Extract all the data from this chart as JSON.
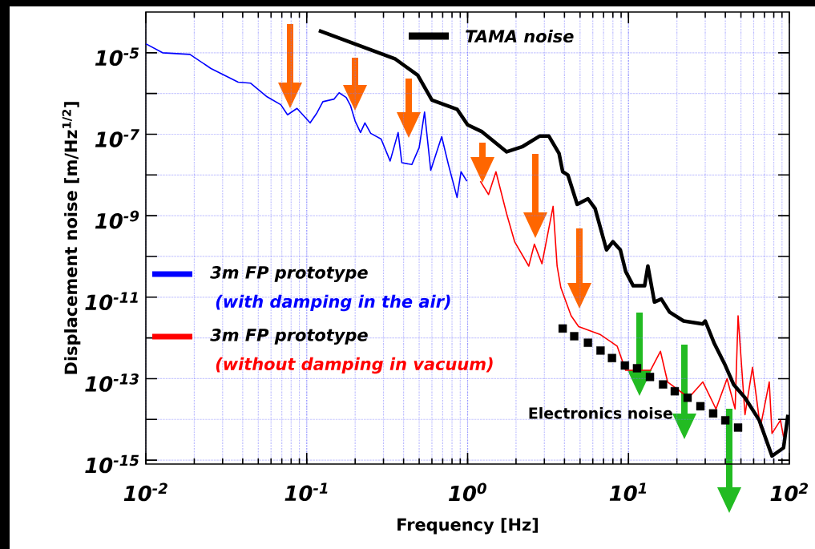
{
  "chart_data": {
    "type": "line",
    "xlabel": "Frequency [Hz]",
    "ylabel": "Displacement noise [m/Hz$^{1/2}$]",
    "log": "xy",
    "grid": true,
    "legend": "left",
    "xlim": [
      0.01,
      100
    ],
    "ylim": [
      8e-16,
      0.0001
    ],
    "xticks": [
      {
        "value": 0.01,
        "label": "10$^{-2}$"
      },
      {
        "value": 0.1,
        "label": "10$^{-1}$"
      },
      {
        "value": 1,
        "label": "10$^{0}$"
      },
      {
        "value": 10,
        "label": "10$^{1}$"
      },
      {
        "value": 100,
        "label": "10$^{2}$"
      }
    ],
    "yticks": [
      {
        "value": 1e-15,
        "label": "10$^{-15}$"
      },
      {
        "value": 1e-14,
        "label": null
      },
      {
        "value": 1e-13,
        "label": "10$^{-13}$"
      },
      {
        "value": 1e-12,
        "label": null
      },
      {
        "value": 1e-11,
        "label": "10$^{-11}$"
      },
      {
        "value": 1e-10,
        "label": null
      },
      {
        "value": 1e-09,
        "label": "10$^{-9}$"
      },
      {
        "value": 1e-08,
        "label": null
      },
      {
        "value": 1e-07,
        "label": "10$^{-7}$"
      },
      {
        "value": 1e-06,
        "label": null
      },
      {
        "value": 1e-05,
        "label": "10$^{-5}$"
      }
    ],
    "annotations": [
      "(with damping in the air)",
      "(without damping in vacuum)"
    ],
    "series": [
      {
        "name": "3m FP prototype",
        "color": "#0000ff",
        "x": [
          0.01,
          0.0127,
          0.0188,
          0.0254,
          0.0375,
          0.0447,
          0.0567,
          0.069,
          0.076,
          0.087,
          0.105,
          0.115,
          0.126,
          0.148,
          0.159,
          0.176,
          0.187,
          0.2,
          0.216,
          0.23,
          0.25,
          0.29,
          0.33,
          0.37,
          0.39,
          0.45,
          0.5,
          0.54,
          0.59,
          0.69,
          0.76,
          0.86,
          0.91,
          0.99
        ],
        "values": [
          1.66e-05,
          1e-05,
          9.1e-06,
          4.1e-06,
          1.9e-06,
          1.8e-06,
          8.3e-07,
          5.3e-07,
          3e-07,
          4.3e-07,
          1.9e-07,
          3.2e-07,
          6.3e-07,
          7.3e-07,
          1.04e-06,
          8e-07,
          5.1e-07,
          2.1e-07,
          1.1e-07,
          1.9e-07,
          1.05e-07,
          7.6e-08,
          2.2e-08,
          1.1e-07,
          2e-08,
          1.8e-08,
          4.7e-08,
          3.5e-07,
          1.3e-08,
          8.7e-08,
          1.8e-08,
          2.8e-09,
          1.2e-08,
          7e-09
        ]
      },
      {
        "name": "3m FP prototype",
        "color": "#ff0000",
        "x": [
          1.2,
          1.35,
          1.5,
          1.75,
          1.96,
          2.4,
          2.6,
          2.9,
          3.4,
          3.6,
          3.8,
          4.4,
          4.9,
          6.7,
          8.5,
          9.6,
          13.7,
          15.8,
          17.5,
          23.7,
          29,
          35,
          41,
          46,
          48,
          53,
          59,
          66,
          75,
          78,
          88,
          92
        ],
        "values": [
          7e-09,
          3.3e-09,
          1.2e-08,
          1.1e-09,
          2.3e-10,
          5.8e-11,
          2e-10,
          6.6e-11,
          1.7e-09,
          5.8e-11,
          1.7e-11,
          3.5e-12,
          1.9e-12,
          1.2e-12,
          6.3e-13,
          1.6e-13,
          1.6e-13,
          4.7e-13,
          8.3e-14,
          3.4e-14,
          8.3e-14,
          1.8e-14,
          1e-13,
          1.8e-14,
          3.5e-12,
          1.3e-14,
          1.9e-13,
          6.3e-15,
          8.3e-14,
          4.5e-15,
          9.5e-15,
          3.7e-15
        ]
      },
      {
        "name": "TAMA noise",
        "color": "#000000",
        "x": [
          0.119,
          0.356,
          0.49,
          0.6,
          0.86,
          1.0,
          1.23,
          1.75,
          2.2,
          2.8,
          3.2,
          3.7,
          3.9,
          4.2,
          4.8,
          5.6,
          6.2,
          7.3,
          8.0,
          8.9,
          9.6,
          10.7,
          12.6,
          13.2,
          14.5,
          16,
          18,
          22,
          29,
          30,
          34,
          40,
          45,
          53,
          65,
          78,
          92,
          98
        ],
        "values": [
          3.5e-05,
          7e-06,
          2.8e-06,
          6.9e-07,
          4.1e-07,
          1.7e-07,
          1.15e-07,
          3.7e-08,
          5e-08,
          9e-08,
          9e-08,
          3.4e-08,
          1.2e-08,
          1e-08,
          1.9e-09,
          2.6e-09,
          1.5e-09,
          1.45e-10,
          2.3e-10,
          1.45e-10,
          4.3e-11,
          1.9e-11,
          1.9e-11,
          5.8e-11,
          7.6e-12,
          9e-12,
          4.3e-12,
          2.6e-12,
          2.2e-12,
          2.6e-12,
          7.6e-13,
          2.1e-13,
          7.2e-14,
          3.4e-14,
          9.5e-15,
          1.26e-15,
          2e-15,
          1.3e-14
        ]
      },
      {
        "name": "Electronics noise",
        "type": "scatter",
        "marker": "square",
        "color": "#000000",
        "x": [
          3.9,
          4.6,
          5.6,
          6.7,
          7.9,
          9.5,
          11.3,
          13.6,
          16.4,
          19.4,
          23.3,
          28,
          33.6,
          40,
          48
        ],
        "values": [
          1.7e-12,
          1.1e-12,
          7.6e-13,
          4.9e-13,
          3.2e-13,
          2.1e-13,
          1.8e-13,
          1.1e-13,
          7.2e-14,
          4.9e-14,
          3.4e-14,
          2.1e-14,
          1.4e-14,
          9.5e-15,
          6.3e-15
        ]
      }
    ]
  }
}
